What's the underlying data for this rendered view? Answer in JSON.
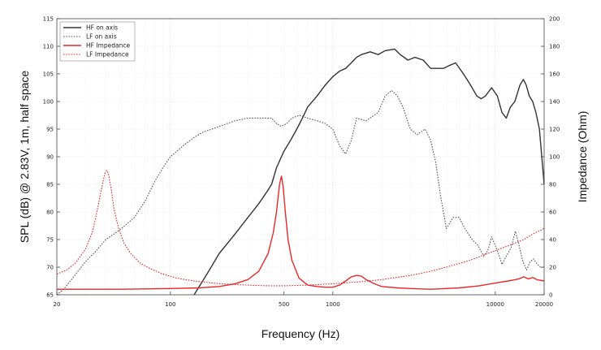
{
  "chart_data": {
    "type": "line",
    "xlabel": "Frequency (Hz)",
    "ylabel_left": "SPL (dB) @ 2.83V, 1m, half space",
    "ylabel_right": "Impedance (Ohm)",
    "x_scale": "log",
    "xlim": [
      20,
      20000
    ],
    "ylim_left": [
      65,
      115
    ],
    "ylim_right": [
      0,
      200
    ],
    "grid": true,
    "legend": "top-left",
    "x_ticks": [
      "20",
      "100",
      "500",
      "1000",
      "10000",
      "20000"
    ],
    "x_tick_values": [
      20,
      100,
      500,
      1000,
      10000,
      20000
    ],
    "y_ticks_left": [
      "115",
      "110",
      "105",
      "100",
      "95",
      "90",
      "85",
      "80",
      "75",
      "70",
      "65"
    ],
    "y_ticks_right": [
      "200",
      "180",
      "160",
      "140",
      "120",
      "100",
      "80",
      "60",
      "40",
      "20",
      "0"
    ],
    "series": [
      {
        "name": "HF on axis",
        "axis": "left",
        "color": "#333333",
        "dash": "solid",
        "points": [
          [
            140,
            65
          ],
          [
            170,
            69
          ],
          [
            200,
            72.5
          ],
          [
            250,
            76
          ],
          [
            300,
            79
          ],
          [
            350,
            81.5
          ],
          [
            400,
            84
          ],
          [
            420,
            85
          ],
          [
            450,
            88
          ],
          [
            500,
            91
          ],
          [
            550,
            93
          ],
          [
            600,
            95
          ],
          [
            650,
            97
          ],
          [
            700,
            99
          ],
          [
            800,
            101
          ],
          [
            900,
            103
          ],
          [
            1000,
            104.5
          ],
          [
            1100,
            105.5
          ],
          [
            1200,
            106
          ],
          [
            1300,
            107
          ],
          [
            1400,
            108
          ],
          [
            1500,
            108.5
          ],
          [
            1700,
            109
          ],
          [
            1900,
            108.5
          ],
          [
            2100,
            109.2
          ],
          [
            2400,
            109.5
          ],
          [
            2600,
            108.5
          ],
          [
            2900,
            107.5
          ],
          [
            3200,
            108
          ],
          [
            3600,
            107.5
          ],
          [
            4000,
            106
          ],
          [
            4400,
            106
          ],
          [
            4800,
            106
          ],
          [
            5200,
            106.5
          ],
          [
            5700,
            107
          ],
          [
            6200,
            105.5
          ],
          [
            6700,
            104
          ],
          [
            7200,
            102.5
          ],
          [
            7700,
            101
          ],
          [
            8200,
            100.5
          ],
          [
            8700,
            101
          ],
          [
            9500,
            102.5
          ],
          [
            10300,
            101
          ],
          [
            11000,
            98
          ],
          [
            11700,
            97
          ],
          [
            12400,
            99
          ],
          [
            13200,
            100
          ],
          [
            14200,
            103
          ],
          [
            14900,
            104
          ],
          [
            15500,
            103
          ],
          [
            16200,
            101
          ],
          [
            17000,
            100
          ],
          [
            17800,
            98
          ],
          [
            18700,
            95
          ],
          [
            20000,
            85
          ]
        ]
      },
      {
        "name": "LF on axis",
        "axis": "left",
        "color": "#555555",
        "dash": "dotted",
        "points": [
          [
            20,
            65
          ],
          [
            22,
            66
          ],
          [
            25,
            68
          ],
          [
            30,
            71
          ],
          [
            35,
            73
          ],
          [
            40,
            75
          ],
          [
            45,
            76
          ],
          [
            50,
            77
          ],
          [
            60,
            79
          ],
          [
            70,
            82
          ],
          [
            80,
            85.5
          ],
          [
            90,
            88
          ],
          [
            100,
            90
          ],
          [
            110,
            91
          ],
          [
            120,
            92
          ],
          [
            140,
            93.5
          ],
          [
            160,
            94.5
          ],
          [
            180,
            95
          ],
          [
            200,
            95.5
          ],
          [
            250,
            96.5
          ],
          [
            300,
            97
          ],
          [
            350,
            97
          ],
          [
            400,
            97
          ],
          [
            420,
            97
          ],
          [
            450,
            96
          ],
          [
            480,
            95.5
          ],
          [
            520,
            96
          ],
          [
            560,
            97
          ],
          [
            620,
            97.5
          ],
          [
            700,
            97
          ],
          [
            800,
            96.5
          ],
          [
            900,
            96
          ],
          [
            1000,
            95
          ],
          [
            1100,
            92
          ],
          [
            1200,
            90.5
          ],
          [
            1300,
            93
          ],
          [
            1400,
            97
          ],
          [
            1600,
            96.5
          ],
          [
            1900,
            98
          ],
          [
            2100,
            101
          ],
          [
            2300,
            102
          ],
          [
            2500,
            101
          ],
          [
            2700,
            99
          ],
          [
            3000,
            95
          ],
          [
            3300,
            94
          ],
          [
            3700,
            95
          ],
          [
            4000,
            93
          ],
          [
            4300,
            89
          ],
          [
            4600,
            83
          ],
          [
            5000,
            77
          ],
          [
            5500,
            79
          ],
          [
            6000,
            79
          ],
          [
            6500,
            77
          ],
          [
            7200,
            75
          ],
          [
            7800,
            74
          ],
          [
            8500,
            72
          ],
          [
            9000,
            73
          ],
          [
            9500,
            75.5
          ],
          [
            10300,
            73
          ],
          [
            11000,
            70.5
          ],
          [
            11700,
            72
          ],
          [
            12500,
            73.5
          ],
          [
            13300,
            76.5
          ],
          [
            14000,
            74
          ],
          [
            14800,
            71
          ],
          [
            15600,
            69.5
          ],
          [
            16400,
            71
          ],
          [
            17200,
            71.5
          ],
          [
            18200,
            70.5
          ],
          [
            19000,
            70
          ],
          [
            20000,
            70
          ]
        ]
      },
      {
        "name": "HF Impedance",
        "axis": "right",
        "color": "#e8282a",
        "dash": "solid",
        "points": [
          [
            20,
            4
          ],
          [
            50,
            4
          ],
          [
            100,
            4.5
          ],
          [
            150,
            5
          ],
          [
            200,
            6
          ],
          [
            250,
            8
          ],
          [
            300,
            11
          ],
          [
            350,
            17
          ],
          [
            400,
            30
          ],
          [
            430,
            45
          ],
          [
            450,
            60
          ],
          [
            470,
            80
          ],
          [
            483,
            86
          ],
          [
            495,
            78
          ],
          [
            510,
            60
          ],
          [
            530,
            40
          ],
          [
            560,
            25
          ],
          [
            620,
            12
          ],
          [
            700,
            7
          ],
          [
            800,
            6
          ],
          [
            900,
            5.5
          ],
          [
            1000,
            5.5
          ],
          [
            1100,
            7
          ],
          [
            1200,
            10
          ],
          [
            1300,
            13
          ],
          [
            1400,
            14
          ],
          [
            1500,
            13.5
          ],
          [
            1600,
            11
          ],
          [
            1800,
            8
          ],
          [
            2000,
            6
          ],
          [
            2500,
            5
          ],
          [
            3000,
            4.5
          ],
          [
            4000,
            4
          ],
          [
            5000,
            4.5
          ],
          [
            6000,
            5
          ],
          [
            8000,
            6.5
          ],
          [
            10000,
            8.5
          ],
          [
            12000,
            10
          ],
          [
            14000,
            11.5
          ],
          [
            15000,
            13
          ],
          [
            16000,
            11.5
          ],
          [
            17000,
            12.5
          ],
          [
            18000,
            11
          ],
          [
            20000,
            10
          ]
        ]
      },
      {
        "name": "LF Impedance",
        "axis": "right",
        "color": "#e8282a",
        "dash": "dotted",
        "points": [
          [
            20,
            15
          ],
          [
            23,
            18
          ],
          [
            26,
            23
          ],
          [
            30,
            33
          ],
          [
            33,
            45
          ],
          [
            35,
            58
          ],
          [
            37,
            72
          ],
          [
            38.5,
            82
          ],
          [
            39.5,
            88
          ],
          [
            40.5,
            90
          ],
          [
            41.5,
            88
          ],
          [
            43,
            78
          ],
          [
            45,
            62
          ],
          [
            48,
            48
          ],
          [
            52,
            37
          ],
          [
            57,
            30
          ],
          [
            65,
            23
          ],
          [
            75,
            19
          ],
          [
            90,
            15
          ],
          [
            110,
            12
          ],
          [
            140,
            10
          ],
          [
            200,
            8
          ],
          [
            300,
            7
          ],
          [
            400,
            6.5
          ],
          [
            500,
            6.5
          ],
          [
            700,
            7
          ],
          [
            1000,
            8
          ],
          [
            1500,
            9.5
          ],
          [
            2000,
            11
          ],
          [
            3000,
            14
          ],
          [
            4000,
            17
          ],
          [
            5000,
            20
          ],
          [
            7000,
            25
          ],
          [
            10000,
            32
          ],
          [
            12000,
            35.5
          ],
          [
            15000,
            40
          ],
          [
            17000,
            44
          ],
          [
            20000,
            48
          ]
        ]
      }
    ]
  }
}
